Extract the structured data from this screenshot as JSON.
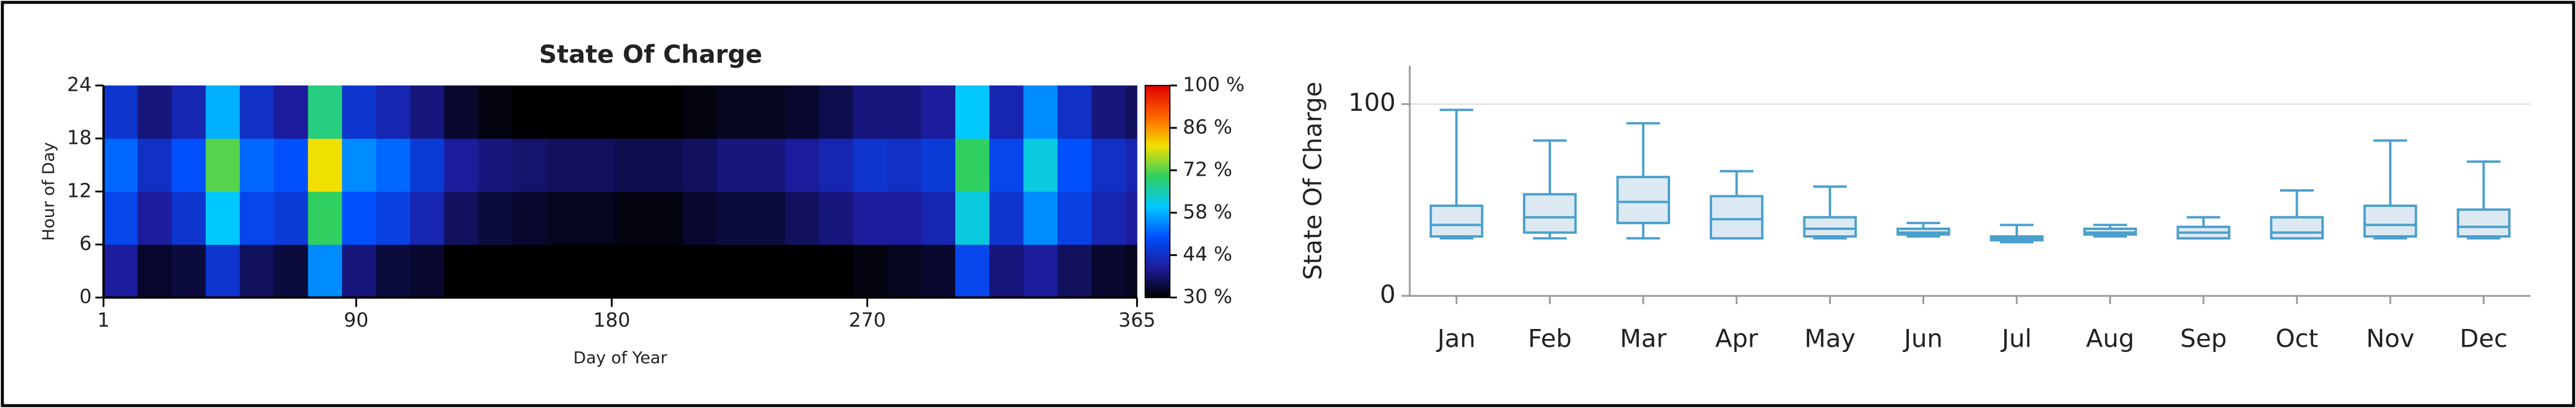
{
  "chart_data": [
    {
      "type": "heatmap",
      "title": "State Of Charge",
      "x_label": "Day of Year",
      "y_label": "Hour of Day",
      "x_edges": [
        1,
        13,
        25,
        37,
        49,
        61,
        73,
        85,
        97,
        109,
        121,
        133,
        145,
        157,
        169,
        181,
        193,
        205,
        217,
        229,
        241,
        253,
        265,
        277,
        289,
        301,
        313,
        325,
        337,
        349,
        361,
        365
      ],
      "y_edges": [
        0,
        6,
        12,
        18,
        24
      ],
      "values": [
        [
          40,
          33,
          34,
          45,
          36,
          34,
          55,
          38,
          34,
          33,
          30,
          30,
          30,
          30,
          30,
          30,
          30,
          30,
          30,
          30,
          30,
          30,
          31,
          32,
          33,
          48,
          38,
          40,
          36,
          33,
          32
        ],
        [
          48,
          40,
          45,
          60,
          48,
          46,
          70,
          50,
          47,
          42,
          36,
          34,
          33,
          32,
          32,
          31,
          31,
          33,
          34,
          34,
          36,
          38,
          40,
          40,
          42,
          62,
          45,
          55,
          47,
          42,
          40
        ],
        [
          52,
          44,
          50,
          72,
          52,
          50,
          80,
          55,
          52,
          46,
          40,
          38,
          37,
          36,
          36,
          35,
          35,
          36,
          38,
          38,
          40,
          42,
          45,
          44,
          46,
          70,
          48,
          62,
          50,
          44,
          42
        ],
        [
          45,
          38,
          42,
          58,
          44,
          40,
          68,
          45,
          42,
          38,
          33,
          31,
          30,
          30,
          30,
          30,
          30,
          31,
          32,
          32,
          33,
          35,
          38,
          38,
          40,
          60,
          42,
          55,
          44,
          38,
          36
        ]
      ],
      "xlim": [
        1,
        365
      ],
      "xticks": [
        1,
        90,
        180,
        270,
        365
      ],
      "ylim": [
        0,
        24
      ],
      "yticks": [
        0,
        6,
        12,
        18,
        24
      ],
      "color_range": [
        30,
        100
      ],
      "colors": [
        "#000000",
        "#1c1c9c",
        "#0050ff",
        "#00c8ff",
        "#30d060",
        "#f0e000",
        "#ff6000",
        "#e00000"
      ],
      "color_ticks": [
        {
          "value": 30,
          "label": "30 %"
        },
        {
          "value": 44,
          "label": "44 %"
        },
        {
          "value": 58,
          "label": "58 %"
        },
        {
          "value": 72,
          "label": "72 %"
        },
        {
          "value": 86,
          "label": "86 %"
        },
        {
          "value": 100,
          "label": "100 %"
        }
      ]
    },
    {
      "type": "box",
      "y_label": "State Of Charge",
      "categories": [
        "Jan",
        "Feb",
        "Mar",
        "Apr",
        "May",
        "Jun",
        "Jul",
        "Aug",
        "Sep",
        "Oct",
        "Nov",
        "Dec"
      ],
      "min": [
        30,
        30,
        30,
        30,
        30,
        31,
        28,
        31,
        30,
        30,
        30,
        30
      ],
      "q1": [
        31,
        33,
        38,
        30,
        31,
        32,
        29,
        32,
        30,
        30,
        31,
        31
      ],
      "median": [
        37,
        41,
        49,
        40,
        35,
        33,
        30,
        33,
        33,
        33,
        37,
        36
      ],
      "q3": [
        47,
        53,
        62,
        52,
        41,
        35,
        31,
        35,
        36,
        41,
        47,
        45
      ],
      "max": [
        97,
        81,
        90,
        65,
        57,
        38,
        37,
        37,
        41,
        55,
        81,
        70
      ],
      "ylim": [
        0,
        120
      ],
      "yticks": [
        0,
        100
      ],
      "grid": true,
      "color": "#4a9fcc",
      "fill": "#dce9f3"
    }
  ]
}
